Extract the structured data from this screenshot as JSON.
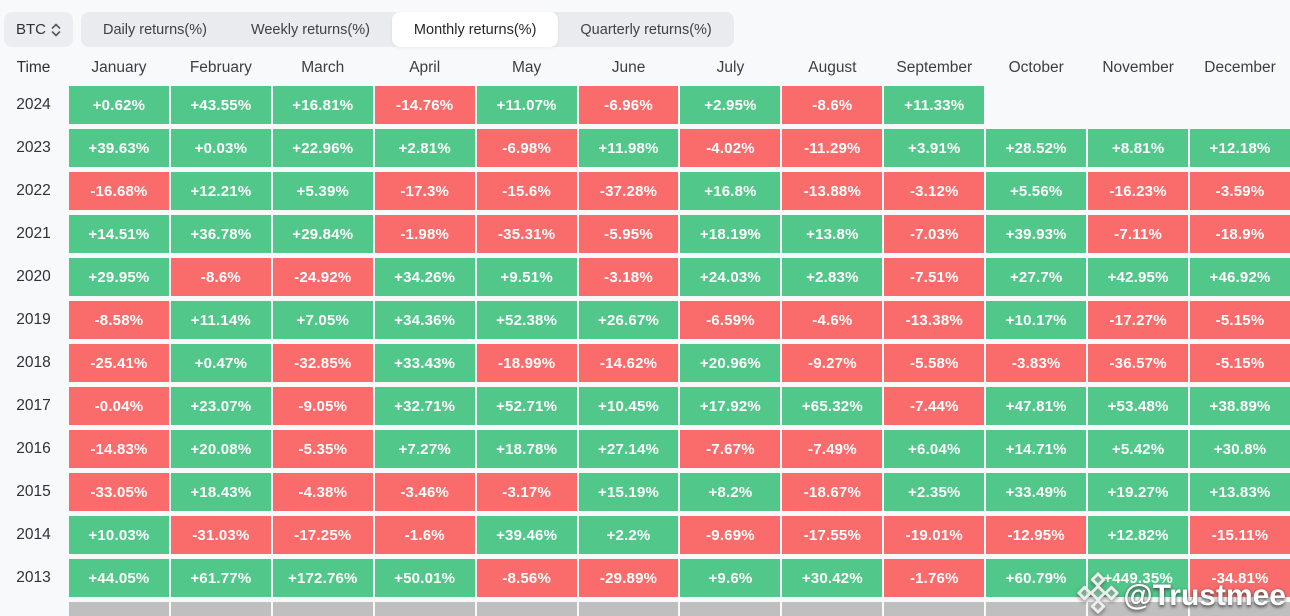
{
  "symbol_selector": {
    "label": "BTC"
  },
  "tabs": [
    {
      "label": "Daily returns(%)",
      "active": false
    },
    {
      "label": "Weekly returns(%)",
      "active": false
    },
    {
      "label": "Monthly returns(%)",
      "active": true
    },
    {
      "label": "Quarterly returns(%)",
      "active": false
    }
  ],
  "watermark": {
    "text": "@Trustmee",
    "icon": "diamond-logo"
  },
  "colors": {
    "positive": "#51c88a",
    "negative": "#f96c6b",
    "neutral": "#bfbfbf",
    "active_tab_bg": "#ffffff",
    "control_bg": "#e9ebee"
  },
  "chart_data": {
    "type": "heatmap",
    "title": "Monthly returns(%)",
    "unit": "%",
    "columns": [
      "Time",
      "January",
      "February",
      "March",
      "April",
      "May",
      "June",
      "July",
      "August",
      "September",
      "October",
      "November",
      "December"
    ],
    "rows": [
      {
        "year": "2024",
        "values": [
          "+0.62%",
          "+43.55%",
          "+16.81%",
          "-14.76%",
          "+11.07%",
          "-6.96%",
          "+2.95%",
          "-8.6%",
          "+11.33%",
          null,
          null,
          null
        ]
      },
      {
        "year": "2023",
        "values": [
          "+39.63%",
          "+0.03%",
          "+22.96%",
          "+2.81%",
          "-6.98%",
          "+11.98%",
          "-4.02%",
          "-11.29%",
          "+3.91%",
          "+28.52%",
          "+8.81%",
          "+12.18%"
        ]
      },
      {
        "year": "2022",
        "values": [
          "-16.68%",
          "+12.21%",
          "+5.39%",
          "-17.3%",
          "-15.6%",
          "-37.28%",
          "+16.8%",
          "-13.88%",
          "-3.12%",
          "+5.56%",
          "-16.23%",
          "-3.59%"
        ]
      },
      {
        "year": "2021",
        "values": [
          "+14.51%",
          "+36.78%",
          "+29.84%",
          "-1.98%",
          "-35.31%",
          "-5.95%",
          "+18.19%",
          "+13.8%",
          "-7.03%",
          "+39.93%",
          "-7.11%",
          "-18.9%"
        ]
      },
      {
        "year": "2020",
        "values": [
          "+29.95%",
          "-8.6%",
          "-24.92%",
          "+34.26%",
          "+9.51%",
          "-3.18%",
          "+24.03%",
          "+2.83%",
          "-7.51%",
          "+27.7%",
          "+42.95%",
          "+46.92%"
        ]
      },
      {
        "year": "2019",
        "values": [
          "-8.58%",
          "+11.14%",
          "+7.05%",
          "+34.36%",
          "+52.38%",
          "+26.67%",
          "-6.59%",
          "-4.6%",
          "-13.38%",
          "+10.17%",
          "-17.27%",
          "-5.15%"
        ]
      },
      {
        "year": "2018",
        "values": [
          "-25.41%",
          "+0.47%",
          "-32.85%",
          "+33.43%",
          "-18.99%",
          "-14.62%",
          "+20.96%",
          "-9.27%",
          "-5.58%",
          "-3.83%",
          "-36.57%",
          "-5.15%"
        ]
      },
      {
        "year": "2017",
        "values": [
          "-0.04%",
          "+23.07%",
          "-9.05%",
          "+32.71%",
          "+52.71%",
          "+10.45%",
          "+17.92%",
          "+65.32%",
          "-7.44%",
          "+47.81%",
          "+53.48%",
          "+38.89%"
        ]
      },
      {
        "year": "2016",
        "values": [
          "-14.83%",
          "+20.08%",
          "-5.35%",
          "+7.27%",
          "+18.78%",
          "+27.14%",
          "-7.67%",
          "-7.49%",
          "+6.04%",
          "+14.71%",
          "+5.42%",
          "+30.8%"
        ]
      },
      {
        "year": "2015",
        "values": [
          "-33.05%",
          "+18.43%",
          "-4.38%",
          "-3.46%",
          "-3.17%",
          "+15.19%",
          "+8.2%",
          "-18.67%",
          "+2.35%",
          "+33.49%",
          "+19.27%",
          "+13.83%"
        ]
      },
      {
        "year": "2014",
        "values": [
          "+10.03%",
          "-31.03%",
          "-17.25%",
          "-1.6%",
          "+39.46%",
          "+2.2%",
          "-9.69%",
          "-17.55%",
          "-19.01%",
          "-12.95%",
          "+12.82%",
          "-15.11%"
        ]
      },
      {
        "year": "2013",
        "values": [
          "+44.05%",
          "+61.77%",
          "+172.76%",
          "+50.01%",
          "-8.56%",
          "-29.89%",
          "+9.6%",
          "+30.42%",
          "-1.76%",
          "+60.79%",
          "+449.35%",
          "-34.81%"
        ]
      }
    ],
    "trailing_gray_row": {
      "visible": true,
      "note": "row of neutral gray cells cut off at viewport bottom, values not visible"
    },
    "legend_position": "none",
    "grid": false
  }
}
